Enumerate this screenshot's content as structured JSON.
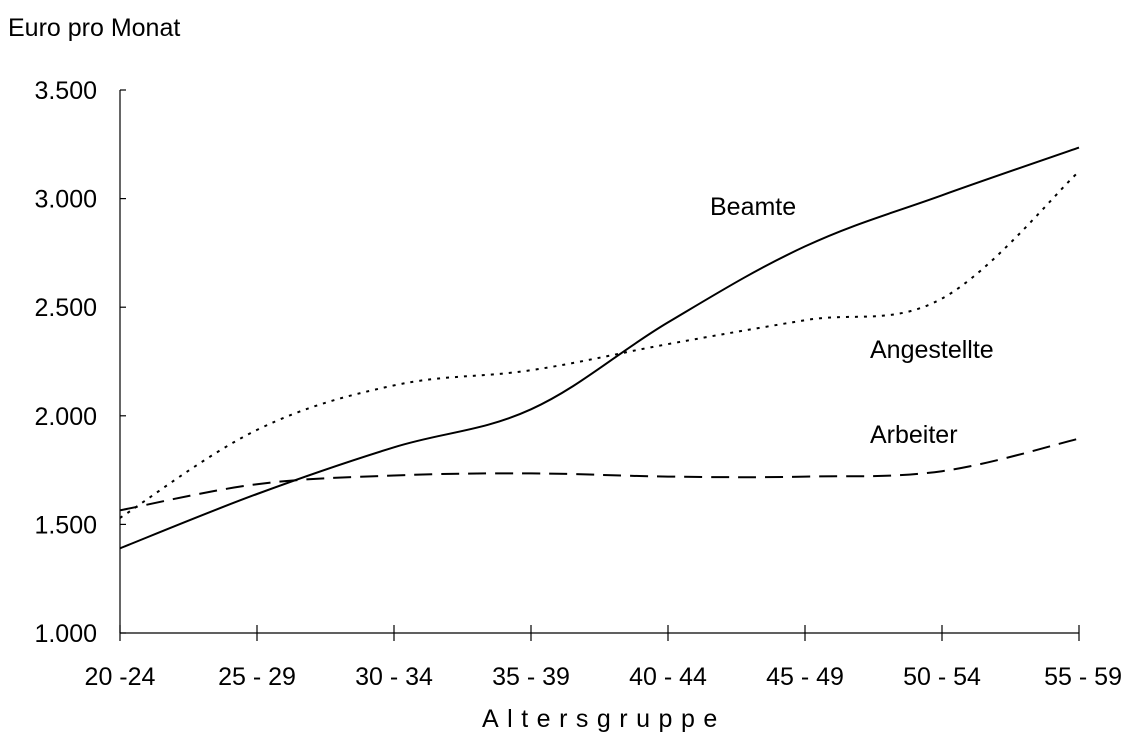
{
  "chart_data": {
    "type": "line",
    "ylabel": "Euro pro Monat",
    "xlabel": "Altersgruppe",
    "categories": [
      "20 -24",
      "25 - 29",
      "30 - 34",
      "35 - 39",
      "40 - 44",
      "45 - 49",
      "50 - 54",
      "55 - 59"
    ],
    "ylim": [
      1000,
      3500
    ],
    "yticks": [
      1000,
      1500,
      2000,
      2500,
      3000,
      3500
    ],
    "ytick_labels": [
      "1.000",
      "1.500",
      "2.000",
      "2.500",
      "3.000",
      "3.500"
    ],
    "grid": false,
    "series": [
      {
        "name": "Beamte",
        "style": "solid",
        "color": "#000000",
        "values": [
          1390,
          1640,
          1855,
          2030,
          2430,
          2780,
          3015,
          3235
        ]
      },
      {
        "name": "Angestellte",
        "style": "dotted",
        "color": "#000000",
        "values": [
          1530,
          1935,
          2140,
          2210,
          2330,
          2440,
          2540,
          3125
        ]
      },
      {
        "name": "Arbeiter",
        "style": "dashed",
        "color": "#000000",
        "values": [
          1565,
          1685,
          1725,
          1735,
          1720,
          1720,
          1745,
          1895
        ]
      }
    ]
  }
}
